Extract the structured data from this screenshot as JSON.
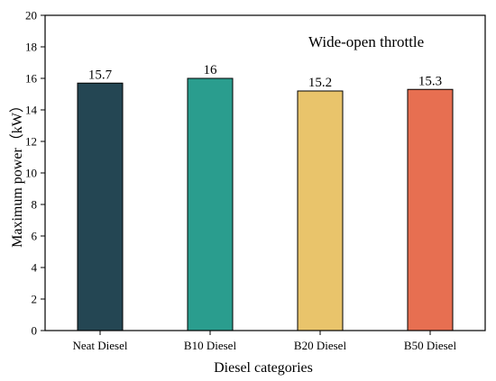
{
  "chart_data": {
    "type": "bar",
    "title": "",
    "annotation": "Wide-open throttle",
    "xlabel": "Diesel  categories",
    "ylabel": "Maximum power（kW）",
    "ylim": [
      0,
      20
    ],
    "yticks": [
      0,
      2,
      4,
      6,
      8,
      10,
      12,
      14,
      16,
      18,
      20
    ],
    "grid": false,
    "categories": [
      "Neat Diesel",
      "B10 Diesel",
      "B20 Diesel",
      "B50 Diesel"
    ],
    "values": [
      15.7,
      16,
      15.2,
      15.3
    ],
    "value_labels": [
      "15.7",
      "16",
      "15.2",
      "15.3"
    ],
    "bar_colors": [
      "#244653",
      "#2a9d8e",
      "#e9c46b",
      "#e76f51"
    ]
  }
}
